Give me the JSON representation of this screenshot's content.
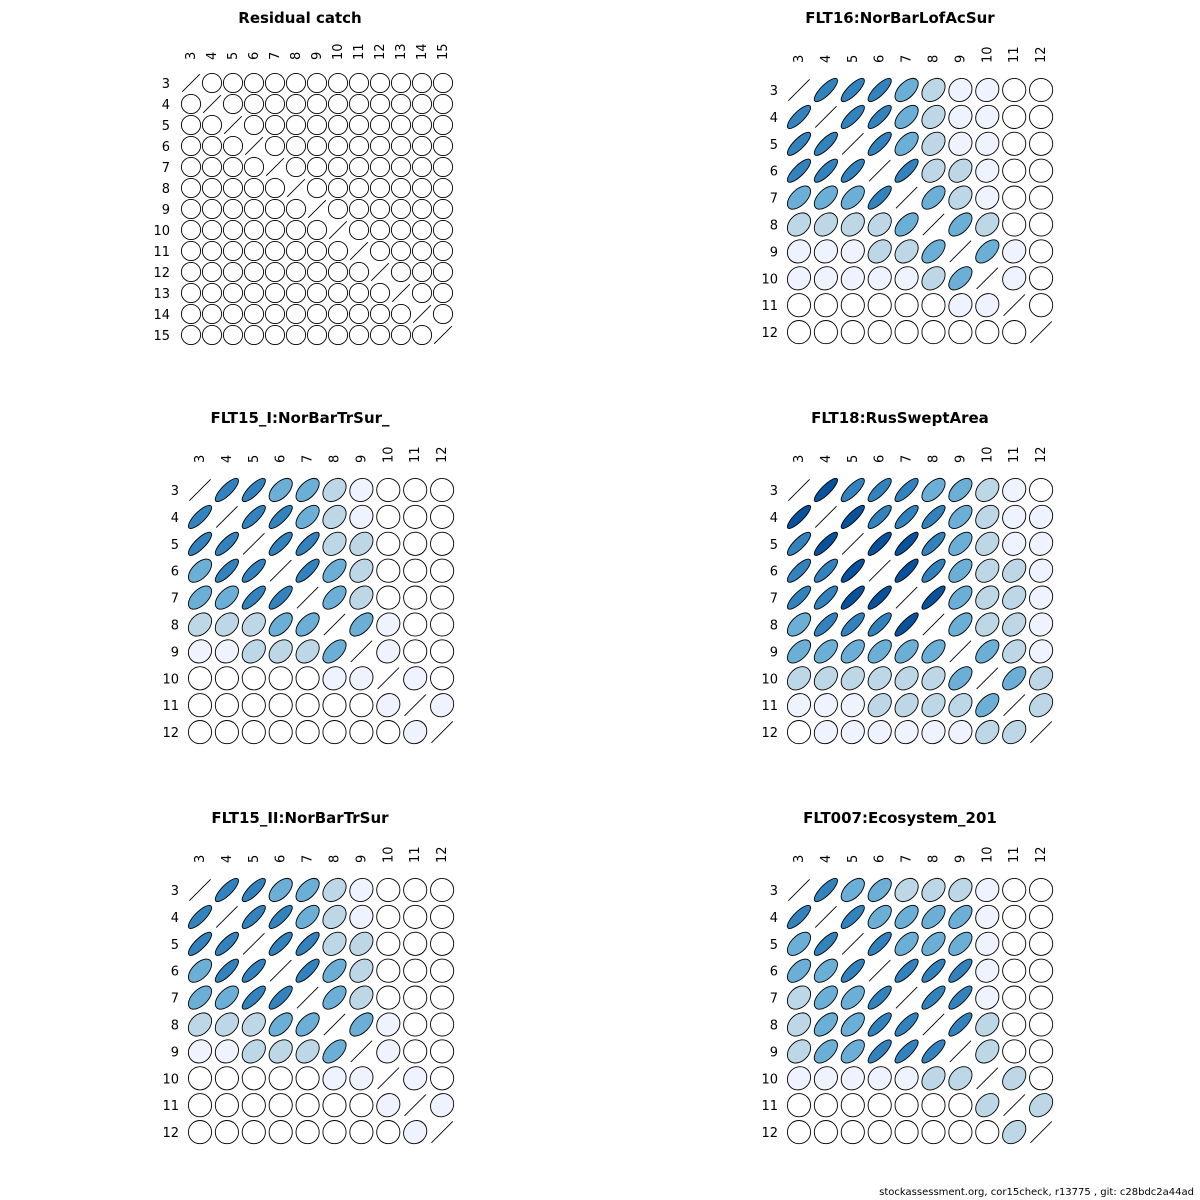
{
  "footer": "stockassessment.org, cor15check, r13775 , git: c28bdc2a44ad",
  "color_scale": {
    "scale": "white-to-blue by absolute correlation",
    "colors": [
      "#ffffff",
      "#eff3ff",
      "#bdd7e7",
      "#6baed6",
      "#3182bd",
      "#08519c"
    ]
  },
  "chart_data": [
    {
      "type": "correlation-ellipse-matrix",
      "title": "Residual catch",
      "labels": [
        "3",
        "4",
        "5",
        "6",
        "7",
        "8",
        "9",
        "10",
        "11",
        "12",
        "13",
        "14",
        "15"
      ],
      "default": 0,
      "cells": []
    },
    {
      "type": "correlation-ellipse-matrix",
      "title": "FLT16:NorBarLofAcSur",
      "labels": [
        "3",
        "4",
        "5",
        "6",
        "7",
        "8",
        "9",
        "10",
        "11",
        "12"
      ],
      "default": 0,
      "cells": [
        [
          "3",
          "4",
          0.8
        ],
        [
          "3",
          "5",
          0.8
        ],
        [
          "3",
          "6",
          0.8
        ],
        [
          "3",
          "7",
          0.55
        ],
        [
          "3",
          "8",
          0.3
        ],
        [
          "3",
          "9",
          0.1
        ],
        [
          "3",
          "10",
          0.1
        ],
        [
          "4",
          "5",
          0.8
        ],
        [
          "4",
          "6",
          0.8
        ],
        [
          "4",
          "7",
          0.55
        ],
        [
          "4",
          "8",
          0.3
        ],
        [
          "4",
          "9",
          0.1
        ],
        [
          "4",
          "10",
          0.1
        ],
        [
          "5",
          "6",
          0.8
        ],
        [
          "5",
          "7",
          0.55
        ],
        [
          "5",
          "8",
          0.3
        ],
        [
          "5",
          "9",
          0.1
        ],
        [
          "5",
          "10",
          0.1
        ],
        [
          "6",
          "7",
          0.8
        ],
        [
          "6",
          "8",
          0.3
        ],
        [
          "6",
          "9",
          0.3
        ],
        [
          "6",
          "10",
          0.1
        ],
        [
          "7",
          "8",
          0.55
        ],
        [
          "7",
          "9",
          0.3
        ],
        [
          "7",
          "10",
          0.1
        ],
        [
          "8",
          "9",
          0.55
        ],
        [
          "8",
          "10",
          0.3
        ],
        [
          "9",
          "10",
          0.55
        ],
        [
          "9",
          "11",
          0.1
        ],
        [
          "10",
          "11",
          0.1
        ]
      ]
    },
    {
      "type": "correlation-ellipse-matrix",
      "title": "FLT15_I:NorBarTrSur_",
      "labels": [
        "3",
        "4",
        "5",
        "6",
        "7",
        "8",
        "9",
        "10",
        "11",
        "12"
      ],
      "default": 0,
      "cells": [
        [
          "3",
          "4",
          0.8
        ],
        [
          "3",
          "5",
          0.8
        ],
        [
          "3",
          "6",
          0.55
        ],
        [
          "3",
          "7",
          0.55
        ],
        [
          "3",
          "8",
          0.3
        ],
        [
          "3",
          "9",
          0.1
        ],
        [
          "4",
          "5",
          0.8
        ],
        [
          "4",
          "6",
          0.8
        ],
        [
          "4",
          "7",
          0.55
        ],
        [
          "4",
          "8",
          0.3
        ],
        [
          "4",
          "9",
          0.1
        ],
        [
          "5",
          "6",
          0.8
        ],
        [
          "5",
          "7",
          0.8
        ],
        [
          "5",
          "8",
          0.3
        ],
        [
          "5",
          "9",
          0.3
        ],
        [
          "6",
          "7",
          0.8
        ],
        [
          "6",
          "8",
          0.55
        ],
        [
          "6",
          "9",
          0.3
        ],
        [
          "7",
          "8",
          0.55
        ],
        [
          "7",
          "9",
          0.3
        ],
        [
          "8",
          "9",
          0.55
        ],
        [
          "8",
          "10",
          0.1
        ],
        [
          "9",
          "10",
          0.1
        ],
        [
          "10",
          "11",
          0.1
        ],
        [
          "11",
          "12",
          0.1
        ]
      ]
    },
    {
      "type": "correlation-ellipse-matrix",
      "title": "FLT18:RusSweptArea",
      "labels": [
        "3",
        "4",
        "5",
        "6",
        "7",
        "8",
        "9",
        "10",
        "11",
        "12"
      ],
      "default": 0,
      "cells": [
        [
          "3",
          "4",
          0.85
        ],
        [
          "3",
          "5",
          0.8
        ],
        [
          "3",
          "6",
          0.8
        ],
        [
          "3",
          "7",
          0.8
        ],
        [
          "3",
          "8",
          0.55
        ],
        [
          "3",
          "9",
          0.55
        ],
        [
          "3",
          "10",
          0.3
        ],
        [
          "3",
          "11",
          0.1
        ],
        [
          "4",
          "5",
          0.85
        ],
        [
          "4",
          "6",
          0.8
        ],
        [
          "4",
          "7",
          0.8
        ],
        [
          "4",
          "8",
          0.8
        ],
        [
          "4",
          "9",
          0.55
        ],
        [
          "4",
          "10",
          0.3
        ],
        [
          "4",
          "11",
          0.1
        ],
        [
          "4",
          "12",
          0.1
        ],
        [
          "5",
          "6",
          0.85
        ],
        [
          "5",
          "7",
          0.85
        ],
        [
          "5",
          "8",
          0.8
        ],
        [
          "5",
          "9",
          0.55
        ],
        [
          "5",
          "10",
          0.3
        ],
        [
          "5",
          "11",
          0.1
        ],
        [
          "5",
          "12",
          0.1
        ],
        [
          "6",
          "7",
          0.85
        ],
        [
          "6",
          "8",
          0.8
        ],
        [
          "6",
          "9",
          0.55
        ],
        [
          "6",
          "10",
          0.3
        ],
        [
          "6",
          "11",
          0.3
        ],
        [
          "6",
          "12",
          0.1
        ],
        [
          "7",
          "8",
          0.85
        ],
        [
          "7",
          "9",
          0.55
        ],
        [
          "7",
          "10",
          0.3
        ],
        [
          "7",
          "11",
          0.3
        ],
        [
          "7",
          "12",
          0.1
        ],
        [
          "8",
          "9",
          0.55
        ],
        [
          "8",
          "10",
          0.3
        ],
        [
          "8",
          "11",
          0.3
        ],
        [
          "8",
          "12",
          0.1
        ],
        [
          "9",
          "10",
          0.55
        ],
        [
          "9",
          "11",
          0.3
        ],
        [
          "9",
          "12",
          0.1
        ],
        [
          "10",
          "11",
          0.55
        ],
        [
          "10",
          "12",
          0.3
        ],
        [
          "11",
          "12",
          0.3
        ]
      ]
    },
    {
      "type": "correlation-ellipse-matrix",
      "title": "FLT15_II:NorBarTrSur",
      "labels": [
        "3",
        "4",
        "5",
        "6",
        "7",
        "8",
        "9",
        "10",
        "11",
        "12"
      ],
      "default": 0,
      "cells": [
        [
          "3",
          "4",
          0.8
        ],
        [
          "3",
          "5",
          0.8
        ],
        [
          "3",
          "6",
          0.55
        ],
        [
          "3",
          "7",
          0.55
        ],
        [
          "3",
          "8",
          0.3
        ],
        [
          "3",
          "9",
          0.1
        ],
        [
          "4",
          "5",
          0.8
        ],
        [
          "4",
          "6",
          0.8
        ],
        [
          "4",
          "7",
          0.55
        ],
        [
          "4",
          "8",
          0.3
        ],
        [
          "4",
          "9",
          0.1
        ],
        [
          "5",
          "6",
          0.8
        ],
        [
          "5",
          "7",
          0.8
        ],
        [
          "5",
          "8",
          0.3
        ],
        [
          "5",
          "9",
          0.3
        ],
        [
          "6",
          "7",
          0.8
        ],
        [
          "6",
          "8",
          0.55
        ],
        [
          "6",
          "9",
          0.3
        ],
        [
          "7",
          "8",
          0.55
        ],
        [
          "7",
          "9",
          0.3
        ],
        [
          "8",
          "9",
          0.55
        ],
        [
          "8",
          "10",
          0.1
        ],
        [
          "9",
          "10",
          0.1
        ],
        [
          "10",
          "11",
          0.1
        ],
        [
          "11",
          "12",
          0.1
        ]
      ]
    },
    {
      "type": "correlation-ellipse-matrix",
      "title": "FLT007:Ecosystem_201",
      "labels": [
        "3",
        "4",
        "5",
        "6",
        "7",
        "8",
        "9",
        "10",
        "11",
        "12"
      ],
      "default": 0,
      "cells": [
        [
          "3",
          "4",
          0.8
        ],
        [
          "3",
          "5",
          0.55
        ],
        [
          "3",
          "6",
          0.55
        ],
        [
          "3",
          "7",
          0.3
        ],
        [
          "3",
          "8",
          0.3
        ],
        [
          "3",
          "9",
          0.3
        ],
        [
          "3",
          "10",
          0.1
        ],
        [
          "4",
          "5",
          0.8
        ],
        [
          "4",
          "6",
          0.55
        ],
        [
          "4",
          "7",
          0.55
        ],
        [
          "4",
          "8",
          0.55
        ],
        [
          "4",
          "9",
          0.55
        ],
        [
          "4",
          "10",
          0.1
        ],
        [
          "5",
          "6",
          0.8
        ],
        [
          "5",
          "7",
          0.55
        ],
        [
          "5",
          "8",
          0.55
        ],
        [
          "5",
          "9",
          0.55
        ],
        [
          "5",
          "10",
          0.1
        ],
        [
          "6",
          "7",
          0.8
        ],
        [
          "6",
          "8",
          0.8
        ],
        [
          "6",
          "9",
          0.8
        ],
        [
          "6",
          "10",
          0.1
        ],
        [
          "7",
          "8",
          0.8
        ],
        [
          "7",
          "9",
          0.8
        ],
        [
          "7",
          "10",
          0.1
        ],
        [
          "8",
          "9",
          0.8
        ],
        [
          "8",
          "10",
          0.3
        ],
        [
          "9",
          "10",
          0.3
        ],
        [
          "10",
          "11",
          0.3
        ],
        [
          "11",
          "12",
          0.3
        ]
      ]
    }
  ]
}
